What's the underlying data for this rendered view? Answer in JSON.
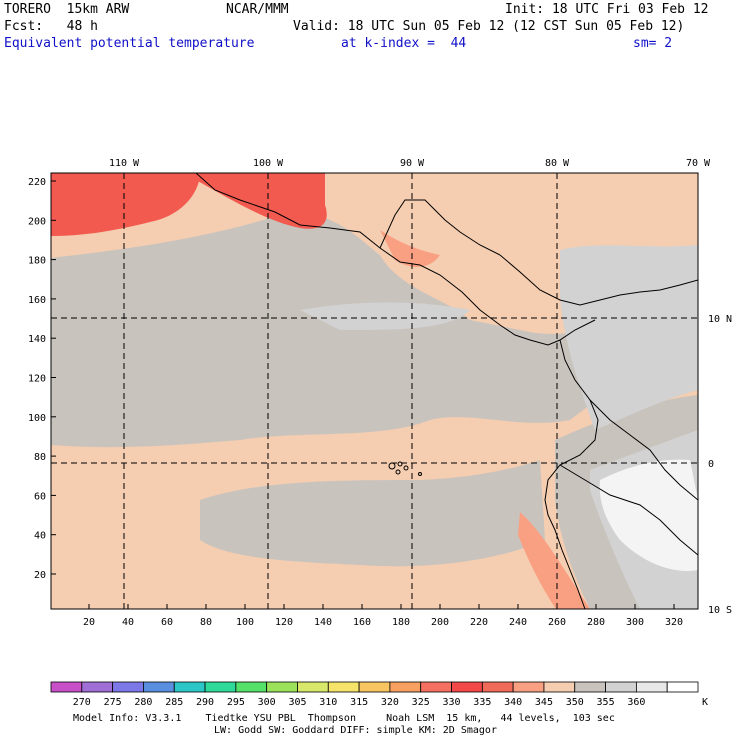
{
  "header": {
    "model": "TORERO  15km ARW",
    "org": "NCAR/MMM",
    "init": "Init: 18 UTC Fri 03 Feb 12",
    "fcst": "Fcst:   48 h",
    "valid": "Valid: 18 UTC Sun 05 Feb 12 (12 CST Sun 05 Feb 12)",
    "field": "Equivalent potential temperature",
    "level": "at k-index =  44",
    "smooth": "sm= 2"
  },
  "map": {
    "lon_labels": [
      "110 W",
      "100 W",
      "90 W",
      "80 W",
      "70 W"
    ],
    "lat_labels": [
      "10 N",
      "0",
      "10 S"
    ],
    "y_ticks": [
      "220",
      "200",
      "180",
      "160",
      "140",
      "120",
      "100",
      "80",
      "60",
      "40",
      "20"
    ],
    "x_ticks": [
      "20",
      "40",
      "60",
      "80",
      "100",
      "120",
      "140",
      "160",
      "180",
      "200",
      "220",
      "240",
      "260",
      "280",
      "300",
      "320"
    ],
    "domain_bg_color": "#f5cdb0",
    "gray_color": "#c9c3be",
    "light_gray_color": "#d2d2d2",
    "red_color": "#f25a50",
    "salmon_color": "#f9a083"
  },
  "colorbar": {
    "labels": [
      "270",
      "275",
      "280",
      "285",
      "290",
      "295",
      "300",
      "305",
      "310",
      "315",
      "320",
      "325",
      "330",
      "335",
      "340",
      "345",
      "350",
      "355",
      "360"
    ],
    "unit": "K",
    "colors": [
      "#c74fc7",
      "#a06fd6",
      "#7d78e8",
      "#5a8fe0",
      "#2cc6c6",
      "#2fd99a",
      "#55e06a",
      "#9be25a",
      "#d8e86a",
      "#f5e36a",
      "#f7c660",
      "#f7a060",
      "#f47060",
      "#f24848",
      "#f06a5a",
      "#f9a083",
      "#f5cdb0",
      "#c9c3be",
      "#d2d2d2",
      "#e8e8e8",
      "#ffffff"
    ]
  },
  "footer": {
    "line1": "Model Info: V3.3.1    Tiedtke YSU PBL  Thompson     Noah LSM  15 km,   44 levels,  103 sec",
    "line2": "LW: Godd SW: Goddard DIFF: simple KM: 2D Smagor"
  }
}
